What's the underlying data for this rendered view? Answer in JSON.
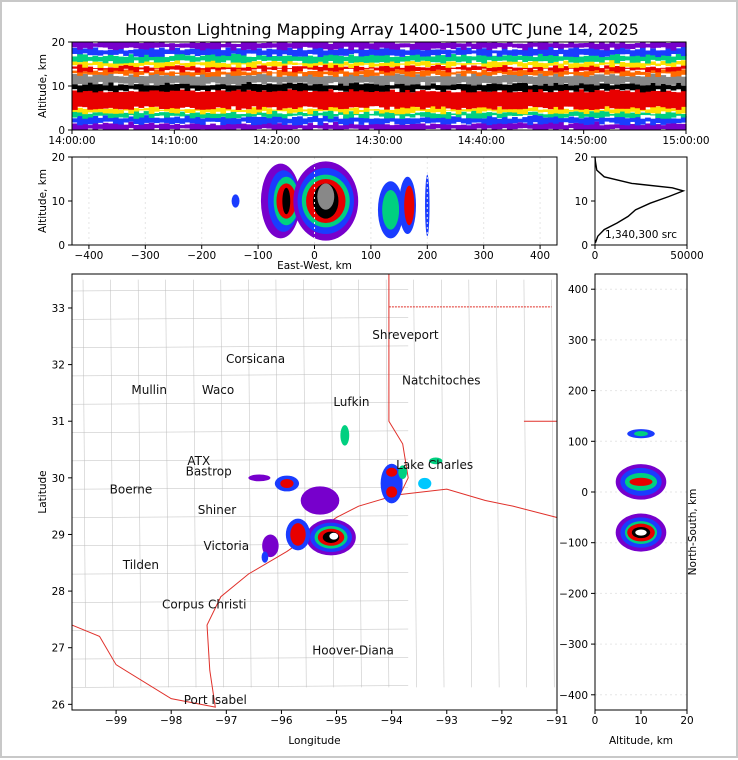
{
  "title": "Houston Lightning Mapping Array 1400-1500 UTC June 14, 2025",
  "colors": {
    "state_border": "#e0302a",
    "county_border": "#bdbdbd",
    "special_site_orange": "#f08a4b",
    "special_site_blue": "#1a1ad6",
    "density_scale": [
      "#ffffff",
      "#7700cc",
      "#1a3cff",
      "#00c8ff",
      "#00d080",
      "#a8f000",
      "#ffe000",
      "#ff6a00",
      "#e80000",
      "#000000",
      "#888888",
      "#ffffff"
    ]
  },
  "chart_data": [
    {
      "type": "heatmap",
      "panel": "altitude-time",
      "ylabel": "Altitude, km",
      "ylim": [
        0,
        20
      ],
      "yticks": [
        "0",
        "10",
        "20"
      ],
      "xlim": [
        "14:00:00",
        "15:00:00"
      ],
      "xticks": [
        "14:00:00",
        "14:10:00",
        "14:20:00",
        "14:30:00",
        "14:40:00",
        "14:50:00",
        "15:00:00"
      ],
      "bands": [
        {
          "from_km": 0.0,
          "to_km": 1.5,
          "color": "#7700cc"
        },
        {
          "from_km": 1.5,
          "to_km": 3.0,
          "color": "#1a3cff"
        },
        {
          "from_km": 3.0,
          "to_km": 4.0,
          "color": "#00d080"
        },
        {
          "from_km": 4.0,
          "to_km": 5.0,
          "color": "#ffe000"
        },
        {
          "from_km": 5.0,
          "to_km": 9.0,
          "color": "#e80000"
        },
        {
          "from_km": 9.0,
          "to_km": 10.5,
          "color": "#000000"
        },
        {
          "from_km": 10.5,
          "to_km": 12.5,
          "color": "#888888"
        },
        {
          "from_km": 12.5,
          "to_km": 13.5,
          "color": "#ff6a00"
        },
        {
          "from_km": 13.5,
          "to_km": 14.5,
          "color": "#e80000"
        },
        {
          "from_km": 14.5,
          "to_km": 15.5,
          "color": "#ffe000"
        },
        {
          "from_km": 15.5,
          "to_km": 17.0,
          "color": "#00d080"
        },
        {
          "from_km": 17.0,
          "to_km": 18.5,
          "color": "#1a3cff"
        },
        {
          "from_km": 18.5,
          "to_km": 20.0,
          "color": "#7700cc"
        }
      ]
    },
    {
      "type": "heatmap",
      "panel": "east-west-altitude",
      "xlabel": "East-West, km",
      "ylabel": "Altitude, km",
      "xlim": [
        -430,
        430
      ],
      "ylim": [
        0,
        20
      ],
      "xticks": [
        "−400",
        "−300",
        "−200",
        "−100",
        "0",
        "100",
        "200",
        "300",
        "400"
      ],
      "yticks": [
        "0",
        "10",
        "20"
      ],
      "cells": [
        {
          "x": -140,
          "z": 10,
          "dx": 14,
          "dz": 3,
          "color": "#1a3cff"
        },
        {
          "x": -60,
          "z": 10,
          "dx": 70,
          "dz": 17,
          "color": "#7700cc"
        },
        {
          "x": -55,
          "z": 10,
          "dx": 55,
          "dz": 14,
          "color": "#1a3cff"
        },
        {
          "x": -50,
          "z": 10,
          "dx": 45,
          "dz": 11,
          "color": "#00d080"
        },
        {
          "x": -50,
          "z": 10,
          "dx": 35,
          "dz": 8,
          "color": "#e80000"
        },
        {
          "x": -50,
          "z": 10,
          "dx": 14,
          "dz": 6,
          "color": "#000000"
        },
        {
          "x": 20,
          "z": 10,
          "dx": 115,
          "dz": 18,
          "color": "#7700cc"
        },
        {
          "x": 20,
          "z": 10,
          "dx": 100,
          "dz": 15,
          "color": "#1a3cff"
        },
        {
          "x": 20,
          "z": 10,
          "dx": 85,
          "dz": 12,
          "color": "#00d080"
        },
        {
          "x": 20,
          "z": 10,
          "dx": 70,
          "dz": 10,
          "color": "#e80000"
        },
        {
          "x": 20,
          "z": 10,
          "dx": 45,
          "dz": 8,
          "color": "#000000"
        },
        {
          "x": 20,
          "z": 11,
          "dx": 30,
          "dz": 6,
          "color": "#888888"
        },
        {
          "x": 135,
          "z": 8,
          "dx": 45,
          "dz": 13,
          "color": "#1a3cff"
        },
        {
          "x": 135,
          "z": 8,
          "dx": 30,
          "dz": 9,
          "color": "#00d080"
        },
        {
          "x": 165,
          "z": 9,
          "dx": 30,
          "dz": 13,
          "color": "#1a3cff"
        },
        {
          "x": 168,
          "z": 9,
          "dx": 18,
          "dz": 9,
          "color": "#e80000"
        },
        {
          "x": 200,
          "z": 9,
          "dx": 8,
          "dz": 14,
          "color": "#1a3cff"
        }
      ]
    },
    {
      "type": "line",
      "panel": "altitude-histogram",
      "annotation": "1,340,300 src",
      "xlim": [
        0,
        50000
      ],
      "ylim": [
        0,
        20
      ],
      "xticks": [
        "0",
        "50000"
      ],
      "yticks": [
        "0",
        "10",
        "20"
      ],
      "points": [
        [
          200,
          0.5
        ],
        [
          1500,
          2
        ],
        [
          5000,
          3.5
        ],
        [
          12000,
          5
        ],
        [
          18000,
          6.5
        ],
        [
          22000,
          8
        ],
        [
          30000,
          9.5
        ],
        [
          40000,
          11
        ],
        [
          48000,
          12.3
        ],
        [
          42000,
          13
        ],
        [
          20000,
          14
        ],
        [
          5000,
          15.5
        ],
        [
          1000,
          17
        ],
        [
          200,
          19
        ],
        [
          0,
          20
        ]
      ]
    },
    {
      "type": "heatmap",
      "panel": "plan-view-map",
      "xlabel": "Longitude",
      "ylabel": "Latitude",
      "xlim": [
        -99.8,
        -91
      ],
      "ylim": [
        25.9,
        33.6
      ],
      "xticks": [
        "−99",
        "−98",
        "−97",
        "−96",
        "−95",
        "−94",
        "−93",
        "−92",
        "−91"
      ],
      "yticks": [
        "26",
        "27",
        "28",
        "29",
        "30",
        "31",
        "32",
        "33"
      ],
      "places": [
        {
          "name": "Shreveport",
          "lon": -93.75,
          "lat": 32.52,
          "kind": "city"
        },
        {
          "name": "Corsicana",
          "lon": -96.47,
          "lat": 32.1,
          "kind": "city"
        },
        {
          "name": "Natchitoches",
          "lon": -93.1,
          "lat": 31.72,
          "kind": "city"
        },
        {
          "name": "Mullin",
          "lon": -98.4,
          "lat": 31.55,
          "kind": "orange"
        },
        {
          "name": "Waco",
          "lon": -97.15,
          "lat": 31.55,
          "kind": "city"
        },
        {
          "name": "Lufkin",
          "lon": -94.73,
          "lat": 31.34,
          "kind": "city"
        },
        {
          "name": "ATX",
          "lon": -97.5,
          "lat": 30.3,
          "kind": "orange"
        },
        {
          "name": "Lake Charles",
          "lon": -93.22,
          "lat": 30.23,
          "kind": "city"
        },
        {
          "name": "Bastrop",
          "lon": -97.32,
          "lat": 30.11,
          "kind": "city"
        },
        {
          "name": "Boerne",
          "lon": -98.73,
          "lat": 29.79,
          "kind": "city"
        },
        {
          "name": "Shiner",
          "lon": -97.17,
          "lat": 29.43,
          "kind": "city"
        },
        {
          "name": "Victoria",
          "lon": -97.0,
          "lat": 28.8,
          "kind": "city"
        },
        {
          "name": "Tilden",
          "lon": -98.55,
          "lat": 28.46,
          "kind": "city"
        },
        {
          "name": "Corpus Christi",
          "lon": -97.4,
          "lat": 27.76,
          "kind": "city"
        },
        {
          "name": "Hoover-Diana",
          "lon": -94.7,
          "lat": 26.95,
          "kind": "blue"
        },
        {
          "name": "Port Isabel",
          "lon": -97.2,
          "lat": 26.08,
          "kind": "city"
        }
      ],
      "cells": [
        {
          "lon": -95.1,
          "lat": 28.95,
          "rx": 0.45,
          "ry": 0.32,
          "color": "#7700cc"
        },
        {
          "lon": -95.1,
          "lat": 28.95,
          "rx": 0.38,
          "ry": 0.26,
          "color": "#1a3cff"
        },
        {
          "lon": -95.1,
          "lat": 28.95,
          "rx": 0.3,
          "ry": 0.2,
          "color": "#00d080"
        },
        {
          "lon": -95.1,
          "lat": 28.95,
          "rx": 0.24,
          "ry": 0.15,
          "color": "#e80000"
        },
        {
          "lon": -95.1,
          "lat": 28.95,
          "rx": 0.15,
          "ry": 0.1,
          "color": "#000000"
        },
        {
          "lon": -95.05,
          "lat": 28.97,
          "rx": 0.08,
          "ry": 0.06,
          "color": "#ffffff"
        },
        {
          "lon": -95.7,
          "lat": 29.0,
          "rx": 0.22,
          "ry": 0.28,
          "color": "#1a3cff"
        },
        {
          "lon": -95.7,
          "lat": 29.0,
          "rx": 0.14,
          "ry": 0.2,
          "color": "#e80000"
        },
        {
          "lon": -95.9,
          "lat": 29.9,
          "rx": 0.22,
          "ry": 0.14,
          "color": "#1a3cff"
        },
        {
          "lon": -95.9,
          "lat": 29.9,
          "rx": 0.12,
          "ry": 0.08,
          "color": "#e80000"
        },
        {
          "lon": -96.4,
          "lat": 30.0,
          "rx": 0.2,
          "ry": 0.06,
          "color": "#7700cc"
        },
        {
          "lon": -95.3,
          "lat": 29.6,
          "rx": 0.35,
          "ry": 0.25,
          "color": "#7700cc"
        },
        {
          "lon": -94.0,
          "lat": 29.9,
          "rx": 0.2,
          "ry": 0.35,
          "color": "#1a3cff"
        },
        {
          "lon": -94.0,
          "lat": 29.75,
          "rx": 0.1,
          "ry": 0.1,
          "color": "#e80000"
        },
        {
          "lon": -94.0,
          "lat": 30.1,
          "rx": 0.1,
          "ry": 0.08,
          "color": "#e80000"
        },
        {
          "lon": -93.8,
          "lat": 30.1,
          "rx": 0.08,
          "ry": 0.12,
          "color": "#00d080"
        },
        {
          "lon": -93.4,
          "lat": 29.9,
          "rx": 0.12,
          "ry": 0.1,
          "color": "#00c8ff"
        },
        {
          "lon": -93.2,
          "lat": 30.3,
          "rx": 0.12,
          "ry": 0.06,
          "color": "#00d080"
        },
        {
          "lon": -94.85,
          "lat": 30.75,
          "rx": 0.08,
          "ry": 0.18,
          "color": "#00d080"
        },
        {
          "lon": -96.2,
          "lat": 28.8,
          "rx": 0.15,
          "ry": 0.2,
          "color": "#7700cc"
        },
        {
          "lon": -96.3,
          "lat": 28.6,
          "rx": 0.06,
          "ry": 0.1,
          "color": "#1a3cff"
        }
      ]
    },
    {
      "type": "heatmap",
      "panel": "north-south-altitude",
      "xlabel": "Altitude, km",
      "ylabel": "North-South, km",
      "xlim": [
        0,
        20
      ],
      "ylim": [
        -430,
        430
      ],
      "xticks": [
        "0",
        "10",
        "20"
      ],
      "yticks": [
        "−400",
        "−300",
        "−200",
        "−100",
        "0",
        "100",
        "200",
        "300",
        "400"
      ],
      "cells": [
        {
          "z": 10,
          "y": 115,
          "dz": 6,
          "dy": 18,
          "color": "#1a3cff"
        },
        {
          "z": 10,
          "y": 115,
          "dz": 3,
          "dy": 10,
          "color": "#00d080"
        },
        {
          "z": 10,
          "y": 20,
          "dz": 11,
          "dy": 70,
          "color": "#7700cc"
        },
        {
          "z": 10,
          "y": 20,
          "dz": 9,
          "dy": 55,
          "color": "#1a3cff"
        },
        {
          "z": 10,
          "y": 20,
          "dz": 7,
          "dy": 35,
          "color": "#00d080"
        },
        {
          "z": 10,
          "y": 20,
          "dz": 5,
          "dy": 16,
          "color": "#e80000"
        },
        {
          "z": 10,
          "y": -80,
          "dz": 11,
          "dy": 75,
          "color": "#7700cc"
        },
        {
          "z": 10,
          "y": -80,
          "dz": 9,
          "dy": 60,
          "color": "#1a3cff"
        },
        {
          "z": 10,
          "y": -80,
          "dz": 7,
          "dy": 45,
          "color": "#00d080"
        },
        {
          "z": 10,
          "y": -80,
          "dz": 6,
          "dy": 35,
          "color": "#e80000"
        },
        {
          "z": 10,
          "y": -80,
          "dz": 4,
          "dy": 22,
          "color": "#000000"
        },
        {
          "z": 10,
          "y": -80,
          "dz": 2.5,
          "dy": 12,
          "color": "#ffffff"
        }
      ]
    }
  ]
}
